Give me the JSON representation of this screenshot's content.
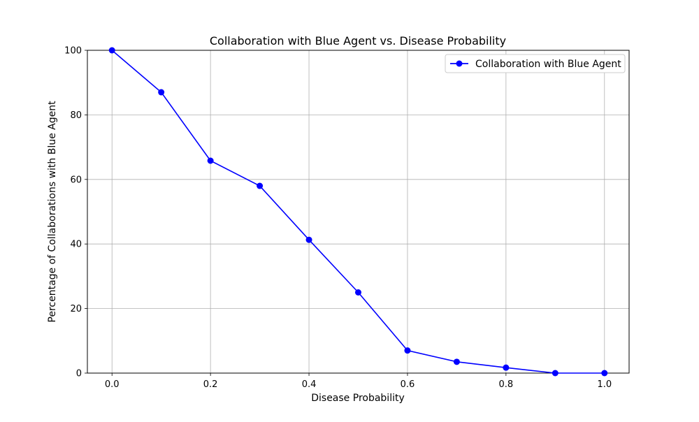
{
  "chart_data": {
    "type": "line",
    "title": "Collaboration with Blue Agent vs. Disease Probability",
    "xlabel": "Disease Probability",
    "ylabel": "Percentage of Collaborations with Blue Agent",
    "xlim": [
      -0.05,
      1.05
    ],
    "ylim": [
      0,
      100
    ],
    "x_ticks": [
      0.0,
      0.2,
      0.4,
      0.6,
      0.8,
      1.0
    ],
    "x_tick_labels": [
      "0.0",
      "0.2",
      "0.4",
      "0.6",
      "0.8",
      "1.0"
    ],
    "y_ticks": [
      0,
      20,
      40,
      60,
      80,
      100
    ],
    "y_tick_labels": [
      "0",
      "20",
      "40",
      "60",
      "80",
      "100"
    ],
    "grid": true,
    "legend_position": "top-right",
    "x": [
      0.0,
      0.1,
      0.2,
      0.3,
      0.4,
      0.5,
      0.6,
      0.7,
      0.8,
      0.9,
      1.0
    ],
    "series": [
      {
        "name": "Collaboration with Blue Agent",
        "color": "#0000ff",
        "marker": "circle",
        "values": [
          100,
          87,
          65.8,
          58,
          41.3,
          25,
          7,
          3.5,
          1.7,
          0,
          0
        ]
      }
    ]
  }
}
